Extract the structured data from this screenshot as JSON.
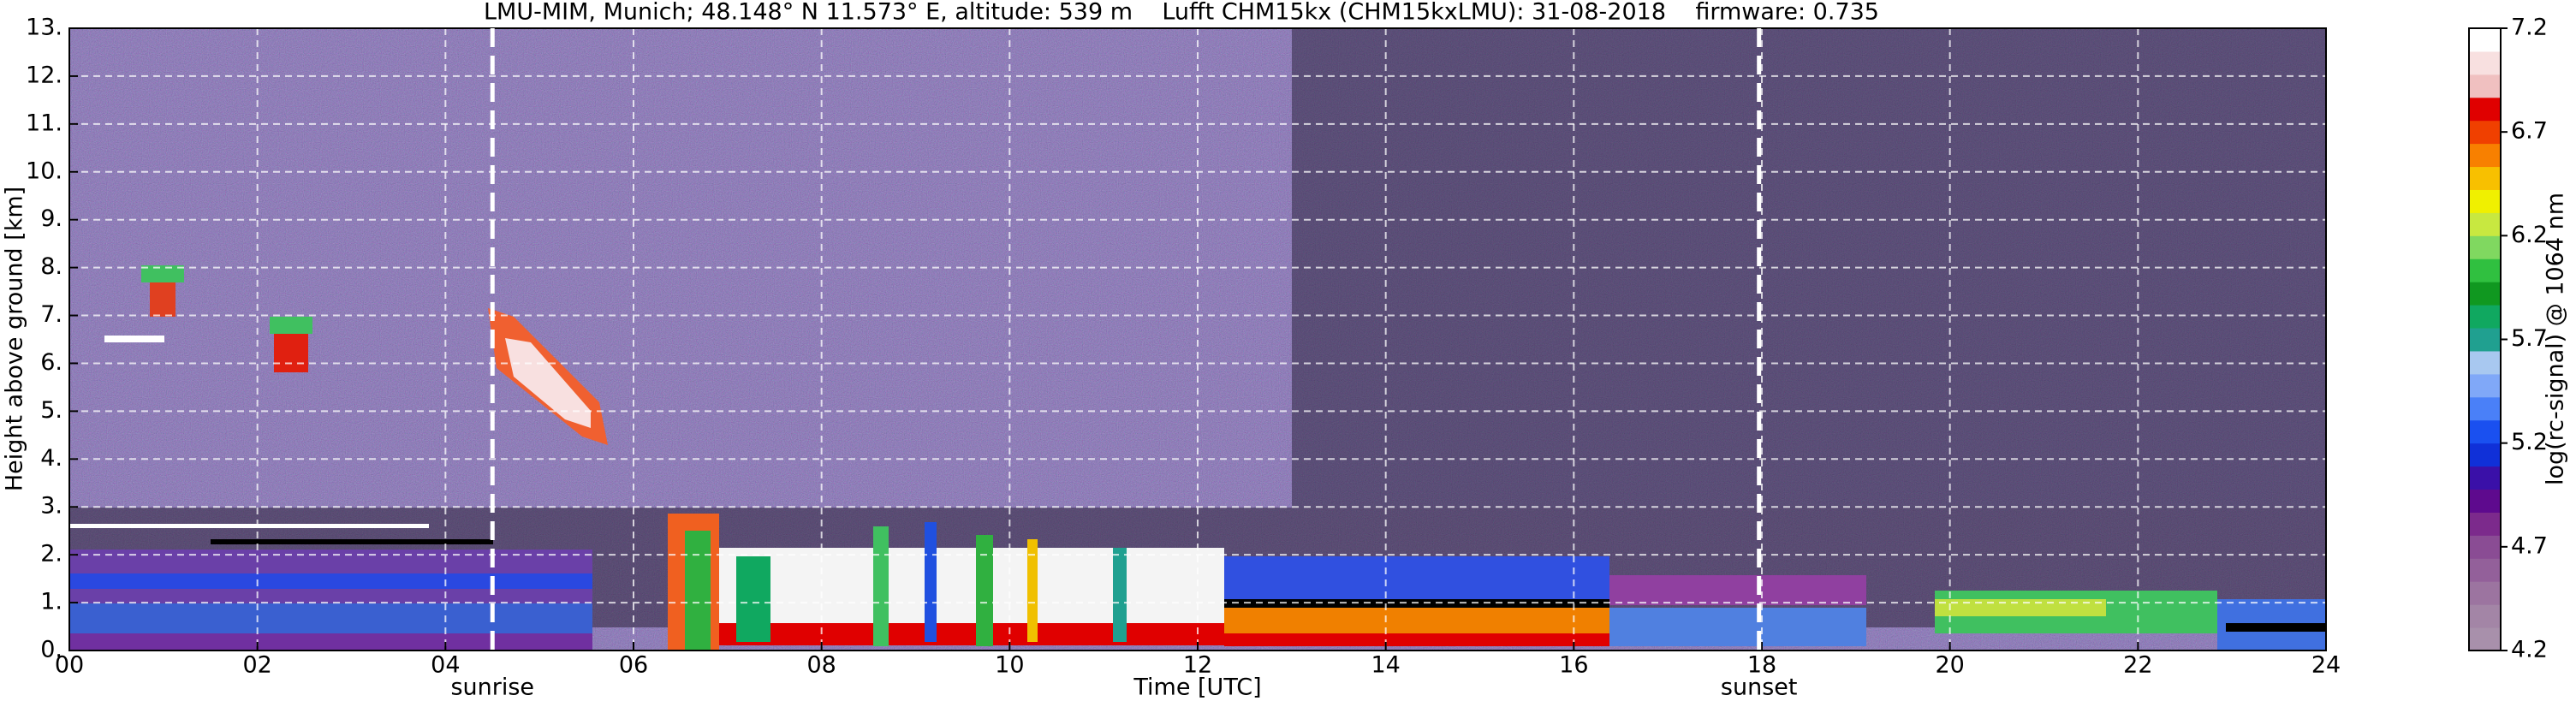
{
  "chart_data": {
    "type": "heatmap",
    "title": "LMU-MIM, Munich; 48.148° N 11.573° E, altitude: 539 m    Lufft CHM15kx (CHM15kxLMU): 31-08-2018    firmware: 0.735",
    "xlabel": "Time [UTC]",
    "ylabel": "Height above ground [km]",
    "xlim": [
      0,
      24
    ],
    "xticks": [
      {
        "value": 0,
        "label": "00"
      },
      {
        "value": 2,
        "label": "02"
      },
      {
        "value": 4,
        "label": "04"
      },
      {
        "value": 6,
        "label": "06"
      },
      {
        "value": 8,
        "label": "08"
      },
      10,
      12,
      14,
      16,
      18,
      20,
      22,
      24
    ],
    "ylim": [
      0,
      13
    ],
    "yticks": [
      {
        "value": 0,
        "label": "0."
      },
      {
        "value": 1,
        "label": "1."
      },
      {
        "value": 2,
        "label": "2."
      },
      {
        "value": 3,
        "label": "3."
      },
      {
        "value": 4,
        "label": "4."
      },
      {
        "value": 5,
        "label": "5."
      },
      {
        "value": 6,
        "label": "6."
      },
      {
        "value": 7,
        "label": "7."
      },
      {
        "value": 8,
        "label": "8."
      },
      {
        "value": 9,
        "label": "9."
      },
      {
        "value": 10,
        "label": "10."
      },
      {
        "value": 11,
        "label": "11."
      },
      {
        "value": 12,
        "label": "12."
      },
      {
        "value": 13,
        "label": "13."
      }
    ],
    "grid": true,
    "annotations": [
      {
        "x": 4.5,
        "label": "sunrise"
      },
      {
        "x": 17.97,
        "label": "sunset"
      }
    ],
    "colorbar": {
      "label": "log(rc-signal) @ 1064 nm",
      "clim": [
        4.2,
        7.2
      ],
      "ticks": [
        4.2,
        4.7,
        5.2,
        5.7,
        6.2,
        6.7,
        7.2
      ],
      "colors": [
        "#a890ab",
        "#a385a6",
        "#9c74a0",
        "#93609a",
        "#8a4c94",
        "#7c2a8c",
        "#5e0a8e",
        "#3a10a8",
        "#1030d8",
        "#1a50f0",
        "#4a80f8",
        "#80a8f8",
        "#a8c8f0",
        "#20a090",
        "#10a860",
        "#109820",
        "#30c040",
        "#80d860",
        "#c8e840",
        "#f0f000",
        "#f8c000",
        "#f88000",
        "#f04000",
        "#e00000",
        "#f0c0c0",
        "#f8e0e0",
        "#ffffff"
      ]
    }
  }
}
